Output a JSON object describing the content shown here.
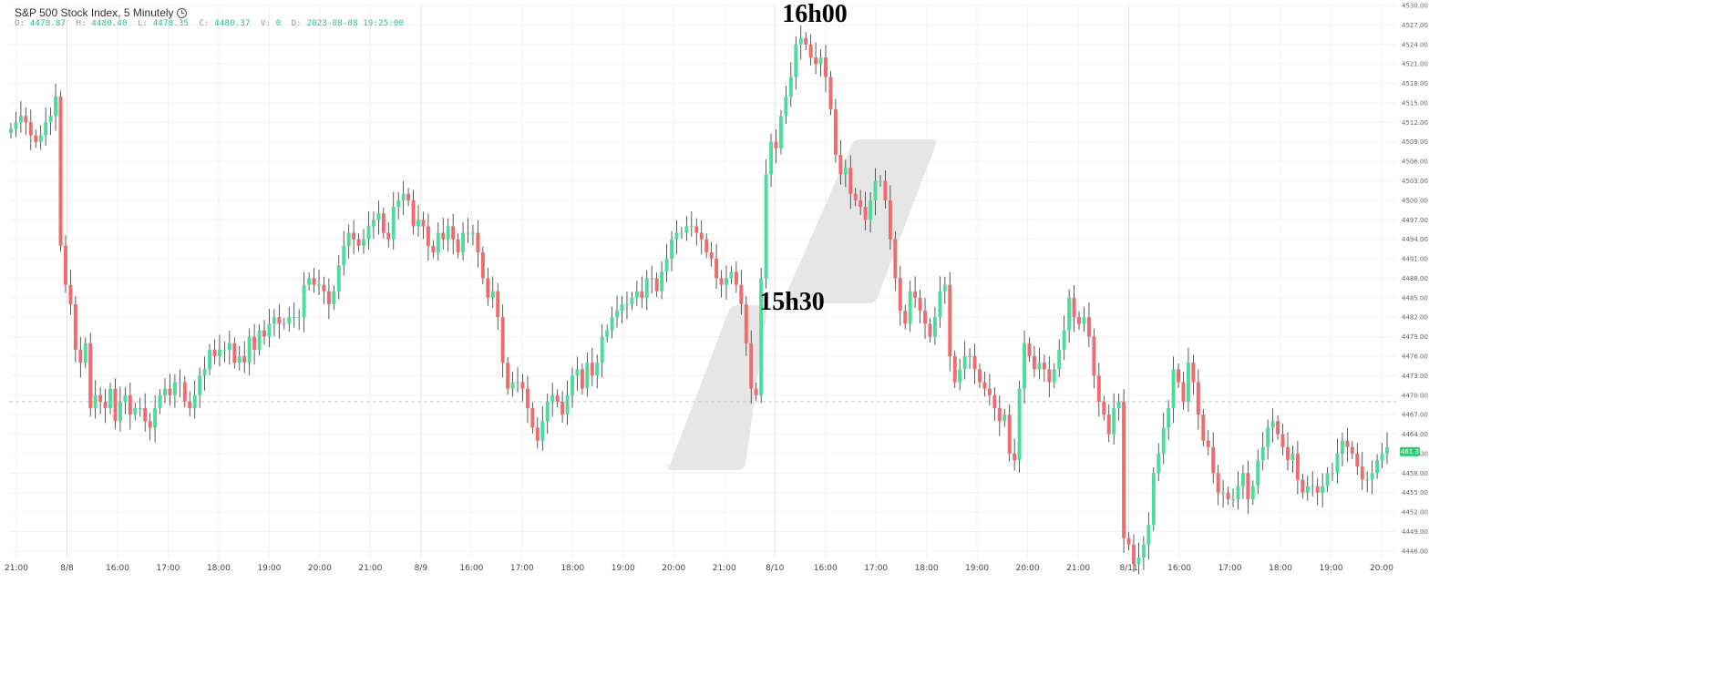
{
  "header": {
    "title": "S&P 500 Stock Index, 5 Minutely",
    "ohlc": {
      "o_label": "O:",
      "o": "4478.87",
      "h_label": "H:",
      "h": "4480.40",
      "l_label": "L:",
      "l": "4478.35",
      "c_label": "C:",
      "c": "4480.37",
      "v_label": "V:",
      "v": "0",
      "d_label": "D:",
      "d": "2023-08-08 19:25:00"
    }
  },
  "annotations": {
    "top": "16h00",
    "mid": "15h30"
  },
  "last_price": "4461.31",
  "colors": {
    "up": "#4cdc9b",
    "down": "#f06a6e",
    "grid": "#f0f0f0",
    "dashed": "#c8c8c8",
    "badge": "#2ecc71",
    "shape": "#e6e6e6"
  },
  "chart_data": {
    "type": "candlestick",
    "title": "S&P 500 Stock Index, 5 Minutely",
    "y_ticks": [
      4446,
      4449,
      4452,
      4455,
      4458,
      4461,
      4464,
      4467,
      4470,
      4473,
      4476,
      4479,
      4482,
      4485,
      4488,
      4491,
      4494,
      4497,
      4500,
      4503,
      4506,
      4509,
      4512,
      4515,
      4518,
      4521,
      4524,
      4527,
      4530
    ],
    "ylim": [
      4445,
      4530
    ],
    "x_labels": [
      "21:00",
      "8/8",
      "16:00",
      "17:00",
      "18:00",
      "19:00",
      "20:00",
      "21:00",
      "8/9",
      "16:00",
      "17:00",
      "18:00",
      "19:00",
      "20:00",
      "21:00",
      "8/10",
      "16:00",
      "17:00",
      "18:00",
      "19:00",
      "20:00",
      "21:00",
      "8/11",
      "16:00",
      "17:00",
      "18:00",
      "19:00",
      "20:00"
    ],
    "closes": [
      4511,
      4512,
      4513,
      4512,
      4510,
      4509,
      4510,
      4512,
      4513,
      4516,
      4493,
      4487,
      4484,
      4477,
      4475,
      4478,
      4468,
      4470,
      4469,
      4468,
      4471,
      4466,
      4469,
      4470,
      4467,
      4468,
      4468,
      4466,
      4465,
      4468,
      4470,
      4471,
      4470,
      4472,
      4472,
      4469,
      4468,
      4470,
      4473,
      4474,
      4477,
      4476,
      4477,
      4477,
      4478,
      4475,
      4476,
      4475,
      4479,
      4477,
      4480,
      4479,
      4481,
      4482,
      4481,
      4481,
      4482,
      4482,
      4482,
      4487,
      4488,
      4487,
      4487,
      4486,
      4484,
      4486,
      4490,
      4493,
      4495,
      4494,
      4493,
      4494,
      4496,
      4497,
      4498,
      4495,
      4494,
      4499,
      4500,
      4501,
      4500,
      4496,
      4497,
      4496,
      4493,
      4492,
      4495,
      4494,
      4496,
      4494,
      4492,
      4495,
      4495,
      4495,
      4492,
      4488,
      4485,
      4486,
      4482,
      4475,
      4471,
      4472,
      4472,
      4471,
      4468,
      4465,
      4463,
      4466,
      4469,
      4470,
      4469,
      4467,
      4470,
      4473,
      4474,
      4471,
      4475,
      4473,
      4475,
      4479,
      4480,
      4482,
      4483,
      4484,
      4484,
      4485,
      4486,
      4485,
      4488,
      4488,
      4486,
      4489,
      4491,
      4494,
      4495,
      4495,
      4496,
      4496,
      4495,
      4494,
      4492,
      4491,
      4488,
      4487,
      4488,
      4489,
      4487,
      4484,
      4478,
      4471,
      4470,
      4488,
      4504,
      4509,
      4508,
      4513,
      4516,
      4519,
      4524,
      4525,
      4524,
      4522,
      4521,
      4522,
      4519,
      4514,
      4507,
      4504,
      4505,
      4501,
      4500,
      4499,
      4497,
      4500,
      4503,
      4503,
      4500,
      4494,
      4488,
      4483,
      4481,
      4486,
      4485,
      4483,
      4481,
      4479,
      4482,
      4486,
      4487,
      4476,
      4472,
      4474,
      4476,
      4476,
      4474,
      4472,
      4471,
      4470,
      4468,
      4466,
      4467,
      4461,
      4460,
      4471,
      4478,
      4476,
      4474,
      4475,
      4474,
      4472,
      4474,
      4477,
      4480,
      4485,
      4482,
      4481,
      4482,
      4479,
      4473,
      4469,
      4467,
      4464,
      4468,
      4469,
      4448,
      4447,
      4444,
      4445,
      4447,
      4450,
      4458,
      4461,
      4465,
      4468,
      4474,
      4472,
      4469,
      4475,
      4472,
      4467,
      4463,
      4462,
      4458,
      4455,
      4455,
      4454,
      4454,
      4456,
      4458,
      4454,
      4456,
      4460,
      4462,
      4465,
      4466,
      4464,
      4462,
      4460,
      4461,
      4457,
      4455,
      4456,
      4456,
      4455,
      4456,
      4458,
      4458,
      4461,
      4463,
      4462,
      4461,
      4459,
      4457,
      4457,
      4458,
      4460,
      4461,
      4462
    ]
  }
}
